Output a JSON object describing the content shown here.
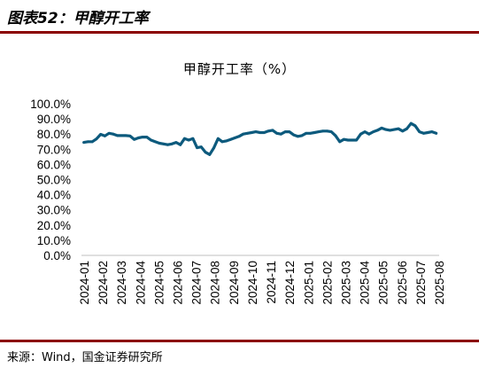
{
  "figure": {
    "label": "图表52：",
    "name": "甲醇开工率",
    "source": "来源：Wind，国金证券研究所"
  },
  "colors": {
    "series": "#0d5a7d",
    "rule": "#8b0000"
  },
  "chart_data": {
    "type": "line",
    "title": "甲醇开工率（%）",
    "xlabel": "",
    "ylabel": "",
    "ylim": [
      0,
      100
    ],
    "y_ticks": [
      "0.0%",
      "10.0%",
      "20.0%",
      "30.0%",
      "40.0%",
      "50.0%",
      "60.0%",
      "70.0%",
      "80.0%",
      "90.0%",
      "100.0%"
    ],
    "x_ticks": [
      "2024-01",
      "2024-02",
      "2024-03",
      "2024-04",
      "2024-05",
      "2024-06",
      "2024-07",
      "2024-08",
      "2024-09",
      "2024-10",
      "2024-11",
      "2024-12",
      "2025-01",
      "2025-02",
      "2025-03",
      "2025-04",
      "2025-05",
      "2025-06",
      "2025-07",
      "2025-08"
    ],
    "grid": false,
    "legend": "none",
    "series": [
      {
        "x": [
          "2024-01-05",
          "2024-01-12",
          "2024-01-19",
          "2024-01-26",
          "2024-02-02",
          "2024-02-09",
          "2024-02-16",
          "2024-02-23",
          "2024-03-01",
          "2024-03-08",
          "2024-03-15",
          "2024-03-22",
          "2024-03-29",
          "2024-04-05",
          "2024-04-12",
          "2024-04-19",
          "2024-04-26",
          "2024-05-03",
          "2024-05-10",
          "2024-05-17",
          "2024-05-24",
          "2024-05-31",
          "2024-06-07",
          "2024-06-14",
          "2024-06-21",
          "2024-06-28",
          "2024-07-05",
          "2024-07-12",
          "2024-07-19",
          "2024-07-26",
          "2024-08-02",
          "2024-08-09",
          "2024-08-16",
          "2024-08-23",
          "2024-08-30",
          "2024-09-06",
          "2024-09-13",
          "2024-09-20",
          "2024-09-27",
          "2024-10-04",
          "2024-10-11",
          "2024-10-18",
          "2024-10-25",
          "2024-11-01",
          "2024-11-08",
          "2024-11-15",
          "2024-11-22",
          "2024-11-29",
          "2024-12-06",
          "2024-12-13",
          "2024-12-20",
          "2024-12-27",
          "2025-01-03",
          "2025-01-10",
          "2025-01-17",
          "2025-01-24",
          "2025-01-31",
          "2025-02-07",
          "2025-02-14",
          "2025-02-21",
          "2025-02-28",
          "2025-03-07",
          "2025-03-14",
          "2025-03-21",
          "2025-03-28",
          "2025-04-04",
          "2025-04-11",
          "2025-04-18",
          "2025-04-25",
          "2025-05-02",
          "2025-05-09",
          "2025-05-16",
          "2025-05-23",
          "2025-05-30",
          "2025-06-06",
          "2025-06-13",
          "2025-06-20",
          "2025-06-27",
          "2025-07-04",
          "2025-07-11",
          "2025-07-18",
          "2025-07-25",
          "2025-08-01",
          "2025-08-08",
          "2025-08-15"
        ],
        "values": [
          74.5,
          75.0,
          75.0,
          76.8,
          79.8,
          78.8,
          80.5,
          80.0,
          79.0,
          79.0,
          79.0,
          78.8,
          76.5,
          77.5,
          78.0,
          78.0,
          76.0,
          75.0,
          74.0,
          73.5,
          73.0,
          73.5,
          74.5,
          73.0,
          77.0,
          76.0,
          77.0,
          71.0,
          71.5,
          68.0,
          66.5,
          71.0,
          77.0,
          75.0,
          75.5,
          76.5,
          77.5,
          78.5,
          80.0,
          80.5,
          81.0,
          81.5,
          81.0,
          81.0,
          82.0,
          82.5,
          80.5,
          80.0,
          81.5,
          81.5,
          79.5,
          78.5,
          79.0,
          80.5,
          80.5,
          81.0,
          81.5,
          82.0,
          82.0,
          81.5,
          79.0,
          75.0,
          76.5,
          76.0,
          76.0,
          76.0,
          80.0,
          81.5,
          80.0,
          81.5,
          82.5,
          84.0,
          83.0,
          82.5,
          83.0,
          83.5,
          82.0,
          83.5,
          87.0,
          85.5,
          81.5,
          80.5,
          81.0,
          81.5,
          80.5
        ]
      }
    ]
  }
}
